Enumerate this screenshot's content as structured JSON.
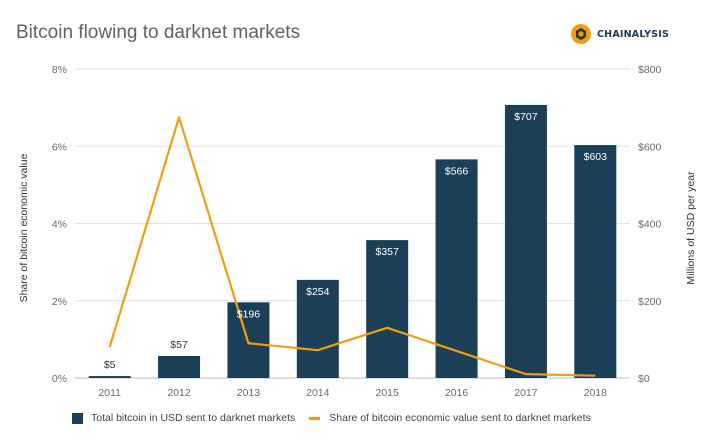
{
  "title": "Bitcoin flowing to darknet markets",
  "brand": {
    "name": "CHAINALYSIS",
    "icon": "chainalysis-logo-icon",
    "color": "#f39c12"
  },
  "colors": {
    "bars": "#1b3f57",
    "line": "#f39c12",
    "grid": "#e3e3e3"
  },
  "chart_data": {
    "type": "bar",
    "categories": [
      "2011",
      "2012",
      "2013",
      "2014",
      "2015",
      "2016",
      "2017",
      "2018"
    ],
    "series": [
      {
        "name": "Total bitcoin in USD sent to darknet markets",
        "kind": "bar",
        "axis": "right",
        "values": [
          5,
          57,
          196,
          254,
          357,
          566,
          707,
          603
        ],
        "labels": [
          "$5",
          "$57",
          "$196",
          "$254",
          "$357",
          "$566",
          "$707",
          "$603"
        ]
      },
      {
        "name": "Share of bitcoin economic value sent to darknet markets",
        "kind": "line",
        "axis": "left",
        "values": [
          0.8,
          6.75,
          0.9,
          0.72,
          1.3,
          0.7,
          0.1,
          0.06
        ]
      }
    ],
    "left_axis": {
      "label": "Share of bitcoin economic value",
      "ticks": [
        "0%",
        "2%",
        "4%",
        "6%",
        "8%"
      ],
      "range": [
        0,
        8
      ]
    },
    "right_axis": {
      "label": "Millions of USD per year",
      "ticks": [
        "$0",
        "$200",
        "$400",
        "$600",
        "$800"
      ],
      "range": [
        0,
        800
      ]
    },
    "grid": true,
    "legend_position": "bottom"
  }
}
